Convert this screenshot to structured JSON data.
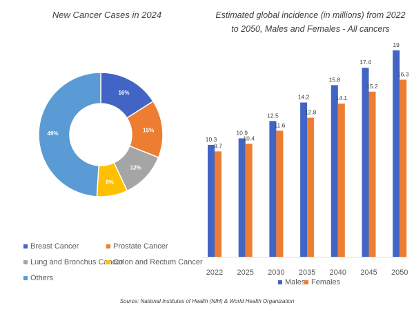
{
  "source": "Source: National Institutes of Health (NIH) & World Health Organization",
  "chart_data": [
    {
      "type": "pie",
      "title": "New Cancer Cases in 2024",
      "donut": true,
      "slices": [
        {
          "label": "Breast Cancer",
          "value": 16,
          "display": "16%",
          "color": "#4264c4"
        },
        {
          "label": "Prostate Cancer",
          "value": 15,
          "display": "15%",
          "color": "#ed7d31"
        },
        {
          "label": "Lung and Bronchus Cancer",
          "value": 12,
          "display": "12%",
          "color": "#a5a5a5"
        },
        {
          "label": "Colon and Rectum Cancer",
          "value": 8,
          "display": "8%",
          "color": "#ffc000"
        },
        {
          "label": "Others",
          "value": 49,
          "display": "49%",
          "color": "#5b9bd5"
        }
      ],
      "legend_position": "bottom"
    },
    {
      "type": "bar",
      "title_lines": [
        "Estimated global incidence (in millions) from 2022",
        "to 2050, Males and Females - All cancers"
      ],
      "categories": [
        "2022",
        "2025",
        "2030",
        "2035",
        "2040",
        "2045",
        "2050"
      ],
      "series": [
        {
          "name": "Males",
          "color": "#4264c4",
          "values": [
            10.3,
            10.9,
            12.5,
            14.2,
            15.8,
            17.4,
            19
          ]
        },
        {
          "name": "Females",
          "color": "#ed7d31",
          "values": [
            9.7,
            10.4,
            11.6,
            12.8,
            14.1,
            15.2,
            16.3
          ]
        }
      ],
      "ylim": [
        0,
        19
      ],
      "data_labels": true,
      "legend_position": "bottom"
    }
  ]
}
